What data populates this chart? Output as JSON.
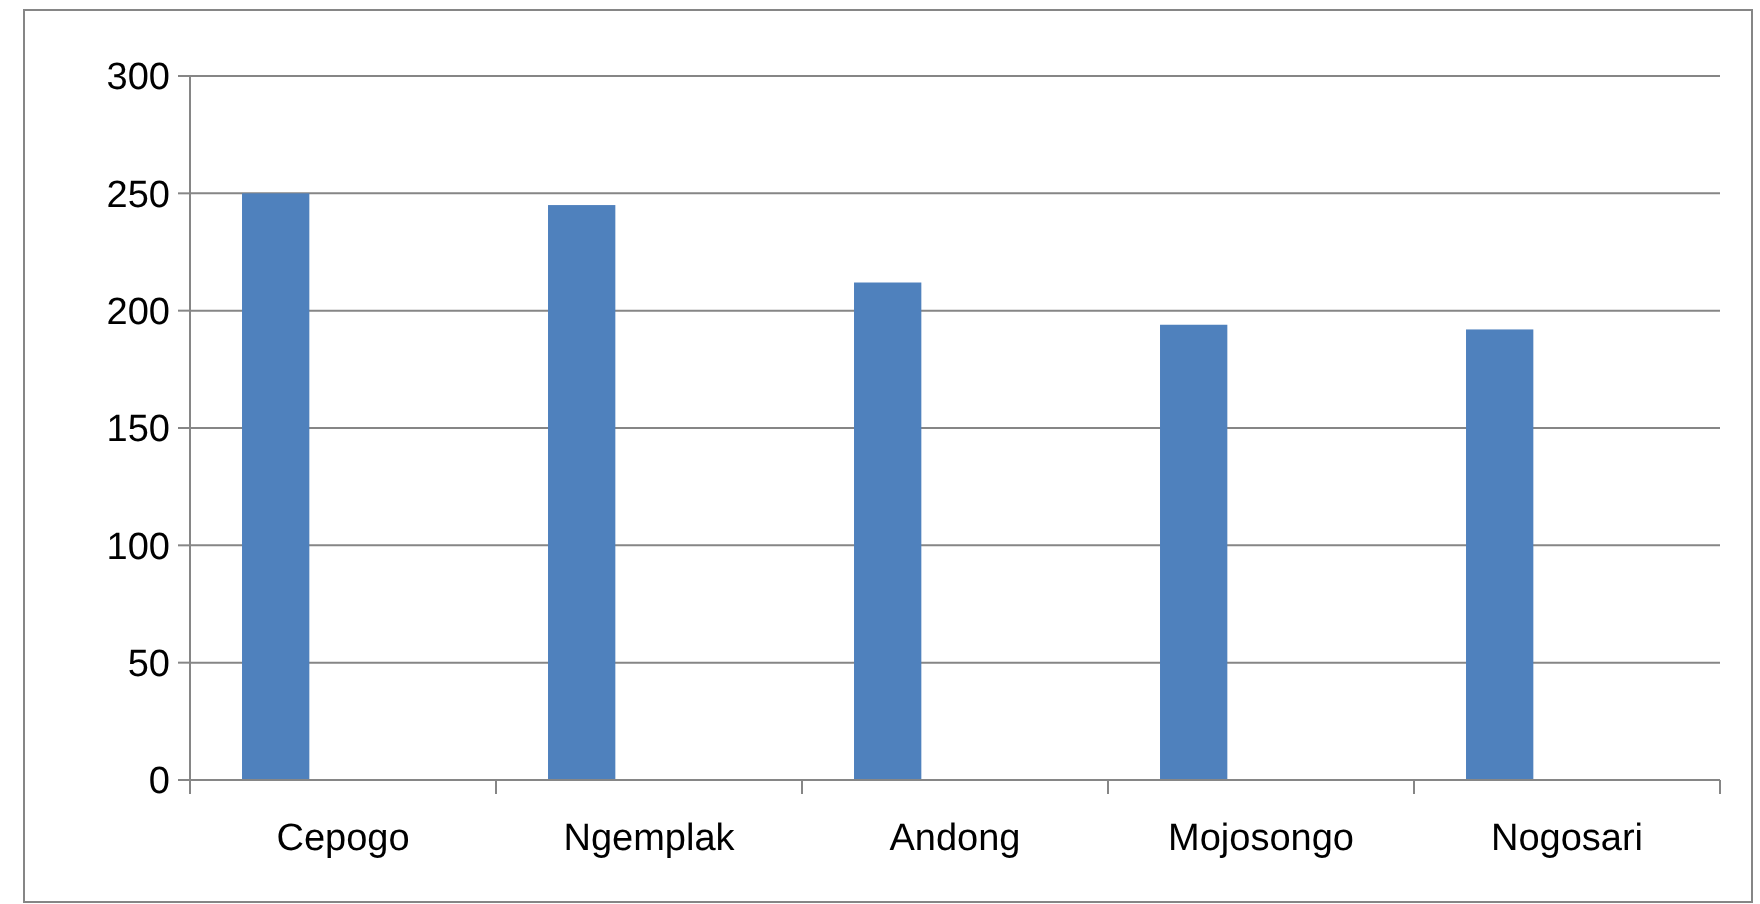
{
  "chart_data": {
    "type": "bar",
    "categories": [
      "Cepogo",
      "Ngemplak",
      "Andong",
      "Mojosongo",
      "Nogosari"
    ],
    "values": [
      250,
      245,
      212,
      194,
      192
    ],
    "color": "#4f81bd",
    "ylim": [
      0,
      300
    ],
    "yticks": [
      0,
      50,
      100,
      150,
      200,
      250,
      300
    ],
    "grid": "y"
  }
}
